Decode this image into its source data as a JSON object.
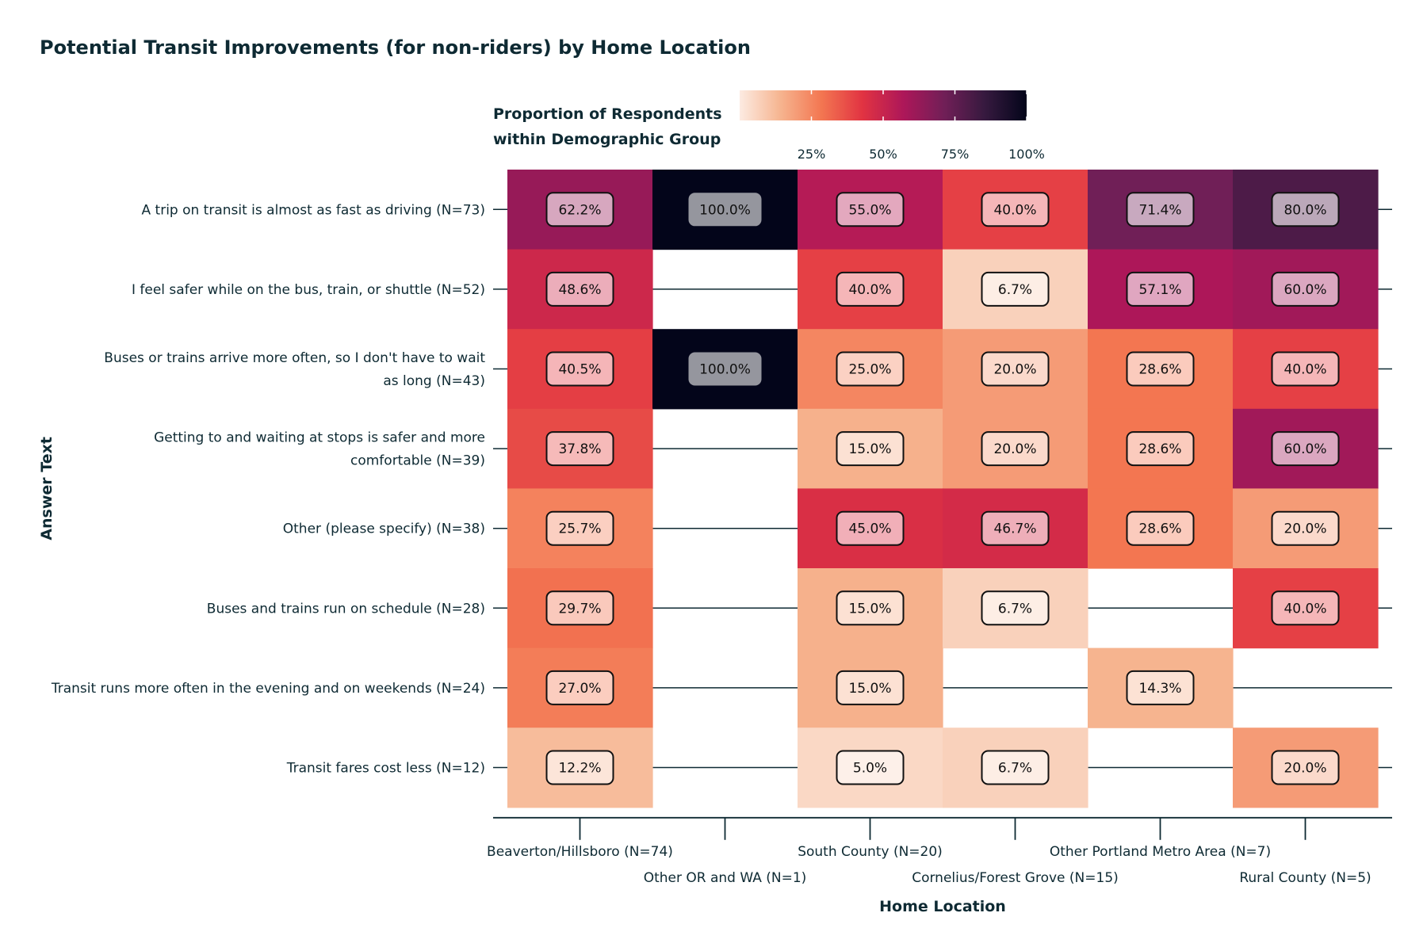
{
  "title": "Potential Transit Improvements (for non-riders) by Home Location",
  "legend": {
    "title_lines": [
      "Proportion of Respondents",
      "within Demographic Group"
    ],
    "ticks": [
      "25%",
      "50%",
      "75%",
      "100%"
    ],
    "tick_values": [
      0.25,
      0.5,
      0.75,
      1.0
    ],
    "gradient_stops": [
      "#fcebe2",
      "#f6b48f",
      "#f37651",
      "#e13342",
      "#ad1759",
      "#701f57",
      "#35193e",
      "#03051a"
    ]
  },
  "chart_data": {
    "type": "heatmap",
    "title": "Potential Transit Improvements (for non-riders) by Home Location",
    "xlabel": "Home Location",
    "ylabel": "Answer Text",
    "x": [
      "Beaverton/Hillsboro (N=74)",
      "Other OR and WA (N=1)",
      "South County (N=20)",
      "Cornelius/Forest Grove (N=15)",
      "Other Portland Metro Area (N=7)",
      "Rural County (N=5)"
    ],
    "y": [
      [
        "A trip on transit is almost as fast as driving (N=73)"
      ],
      [
        "I feel safer while on the bus, train, or shuttle (N=52)"
      ],
      [
        "Buses or trains arrive more often, so I don't have to wait",
        "as long (N=43)"
      ],
      [
        "Getting to and waiting at stops is safer and more",
        "comfortable (N=39)"
      ],
      [
        "Other (please specify) (N=38)"
      ],
      [
        "Buses and trains run on schedule (N=28)"
      ],
      [
        "Transit runs more often in the evening and on weekends (N=24)"
      ],
      [
        "Transit fares cost less (N=12)"
      ]
    ],
    "values": [
      [
        62.2,
        100.0,
        55.0,
        40.0,
        71.4,
        80.0
      ],
      [
        48.6,
        null,
        40.0,
        6.7,
        57.1,
        60.0
      ],
      [
        40.5,
        100.0,
        25.0,
        20.0,
        28.6,
        40.0
      ],
      [
        37.8,
        null,
        15.0,
        20.0,
        28.6,
        60.0
      ],
      [
        25.7,
        null,
        45.0,
        46.7,
        28.6,
        20.0
      ],
      [
        29.7,
        null,
        15.0,
        6.7,
        null,
        40.0
      ],
      [
        27.0,
        null,
        15.0,
        null,
        14.3,
        null
      ],
      [
        12.2,
        null,
        5.0,
        6.7,
        null,
        20.0
      ]
    ],
    "value_labels": [
      [
        "62.2%",
        "100.0%",
        "55.0%",
        "40.0%",
        "71.4%",
        "80.0%"
      ],
      [
        "48.6%",
        "",
        "40.0%",
        "6.7%",
        "57.1%",
        "60.0%"
      ],
      [
        "40.5%",
        "100.0%",
        "25.0%",
        "20.0%",
        "28.6%",
        "40.0%"
      ],
      [
        "37.8%",
        "",
        "15.0%",
        "20.0%",
        "28.6%",
        "60.0%"
      ],
      [
        "25.7%",
        "",
        "45.0%",
        "46.7%",
        "28.6%",
        "20.0%"
      ],
      [
        "29.7%",
        "",
        "15.0%",
        "6.7%",
        "",
        "40.0%"
      ],
      [
        "27.0%",
        "",
        "15.0%",
        "",
        "14.3%",
        ""
      ],
      [
        "12.2%",
        "",
        "5.0%",
        "6.7%",
        "",
        "20.0%"
      ]
    ],
    "color_range": [
      0,
      100
    ],
    "legend_placement": "top"
  }
}
